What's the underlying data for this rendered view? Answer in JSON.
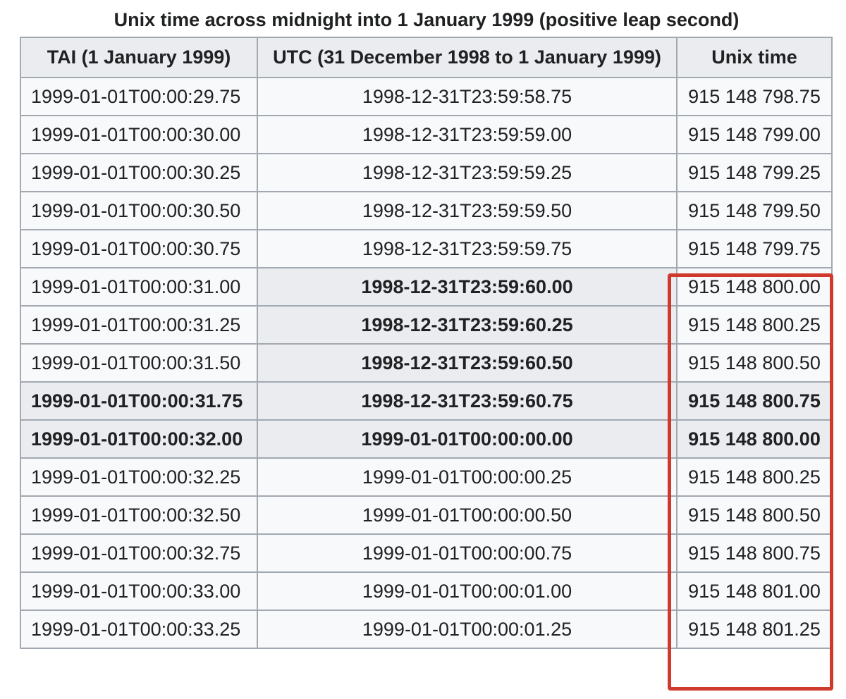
{
  "caption": "Unix time across midnight into 1 January 1999 (positive leap second)",
  "headers": [
    "TAI (1 January 1999)",
    "UTC (31 December 1998 to 1 January 1999)",
    "Unix time"
  ],
  "rows": [
    {
      "tai": "1999-01-01T00:00:29.75",
      "utc": "1998-12-31T23:59:58.75",
      "unix": "915 148 798.75",
      "style": "normal"
    },
    {
      "tai": "1999-01-01T00:00:30.00",
      "utc": "1998-12-31T23:59:59.00",
      "unix": "915 148 799.00",
      "style": "normal"
    },
    {
      "tai": "1999-01-01T00:00:30.25",
      "utc": "1998-12-31T23:59:59.25",
      "unix": "915 148 799.25",
      "style": "normal"
    },
    {
      "tai": "1999-01-01T00:00:30.50",
      "utc": "1998-12-31T23:59:59.50",
      "unix": "915 148 799.50",
      "style": "normal"
    },
    {
      "tai": "1999-01-01T00:00:30.75",
      "utc": "1998-12-31T23:59:59.75",
      "unix": "915 148 799.75",
      "style": "normal"
    },
    {
      "tai": "1999-01-01T00:00:31.00",
      "utc": "1998-12-31T23:59:60.00",
      "unix": "915 148 800.00",
      "style": "leap"
    },
    {
      "tai": "1999-01-01T00:00:31.25",
      "utc": "1998-12-31T23:59:60.25",
      "unix": "915 148 800.25",
      "style": "leap"
    },
    {
      "tai": "1999-01-01T00:00:31.50",
      "utc": "1998-12-31T23:59:60.50",
      "unix": "915 148 800.50",
      "style": "leap"
    },
    {
      "tai": "1999-01-01T00:00:31.75",
      "utc": "1998-12-31T23:59:60.75",
      "unix": "915 148 800.75",
      "style": "bold"
    },
    {
      "tai": "1999-01-01T00:00:32.00",
      "utc": "1999-01-01T00:00:00.00",
      "unix": "915 148 800.00",
      "style": "bold"
    },
    {
      "tai": "1999-01-01T00:00:32.25",
      "utc": "1999-01-01T00:00:00.25",
      "unix": "915 148 800.25",
      "style": "normal"
    },
    {
      "tai": "1999-01-01T00:00:32.50",
      "utc": "1999-01-01T00:00:00.50",
      "unix": "915 148 800.50",
      "style": "normal"
    },
    {
      "tai": "1999-01-01T00:00:32.75",
      "utc": "1999-01-01T00:00:00.75",
      "unix": "915 148 800.75",
      "style": "normal"
    },
    {
      "tai": "1999-01-01T00:00:33.00",
      "utc": "1999-01-01T00:00:01.00",
      "unix": "915 148 801.00",
      "style": "normal"
    },
    {
      "tai": "1999-01-01T00:00:33.25",
      "utc": "1999-01-01T00:00:01.25",
      "unix": "915 148 801.25",
      "style": "normal"
    }
  ],
  "colors": {
    "highlight": "#d03a2c",
    "header_bg": "#eaecf0",
    "cell_bg": "#f8f9fa",
    "border": "#a2a9b1"
  }
}
